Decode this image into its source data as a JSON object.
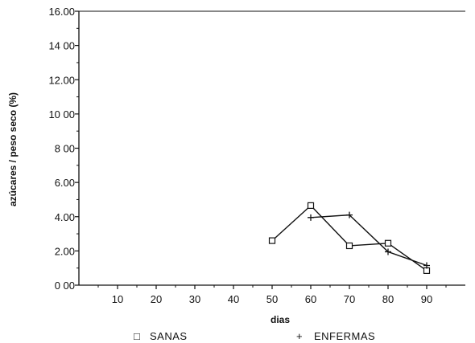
{
  "chart_data": {
    "type": "line",
    "title": "",
    "xlabel": "dias",
    "ylabel": "azúcares / peso seco (%)",
    "x_ticks": [
      "10",
      "20",
      "30",
      "40",
      "50",
      "60",
      "70",
      "80",
      "90"
    ],
    "y_ticks": [
      "0 00",
      "2.00",
      "4.00",
      "6.00",
      "8 00",
      "10 00",
      "12.00",
      "14 00",
      "16.00"
    ],
    "xlim": [
      0,
      100
    ],
    "ylim": [
      0,
      16
    ],
    "grid": false,
    "legend_position": "bottom",
    "series": [
      {
        "name": "SANAS",
        "marker": "square",
        "x": [
          50,
          60,
          70,
          80,
          90
        ],
        "y": [
          2.6,
          4.65,
          2.3,
          2.45,
          0.85
        ]
      },
      {
        "name": "ENFERMAS",
        "marker": "plus",
        "x": [
          60,
          70,
          80,
          90
        ],
        "y": [
          3.95,
          4.1,
          1.95,
          1.15
        ]
      }
    ],
    "legend_symbols": [
      "□",
      "+"
    ]
  }
}
